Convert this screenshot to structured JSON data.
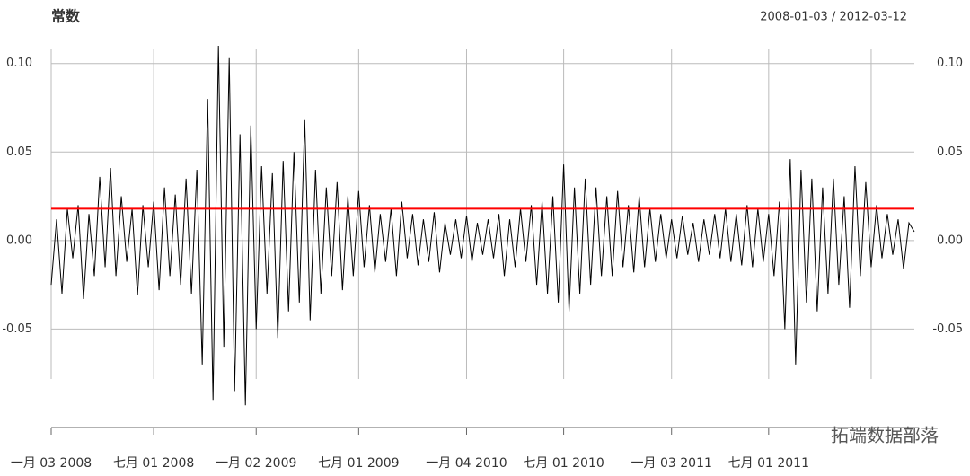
{
  "chart_data": {
    "type": "line",
    "title": "常数",
    "subtitle": "2008-01-03 / 2012-03-12",
    "values": [
      -0.025,
      0.012,
      -0.03,
      0.018,
      -0.01,
      0.02,
      -0.033,
      0.015,
      -0.02,
      0.036,
      -0.015,
      0.041,
      -0.02,
      0.025,
      -0.012,
      0.018,
      -0.031,
      0.02,
      -0.015,
      0.022,
      -0.028,
      0.03,
      -0.02,
      0.026,
      -0.025,
      0.035,
      -0.03,
      0.04,
      -0.07,
      0.08,
      -0.09,
      0.11,
      -0.06,
      0.103,
      -0.085,
      0.06,
      -0.093,
      0.065,
      -0.05,
      0.042,
      -0.03,
      0.038,
      -0.055,
      0.045,
      -0.04,
      0.05,
      -0.035,
      0.068,
      -0.045,
      0.04,
      -0.03,
      0.03,
      -0.02,
      0.033,
      -0.028,
      0.025,
      -0.02,
      0.028,
      -0.015,
      0.02,
      -0.018,
      0.015,
      -0.012,
      0.018,
      -0.02,
      0.022,
      -0.01,
      0.015,
      -0.014,
      0.012,
      -0.012,
      0.016,
      -0.018,
      0.01,
      -0.008,
      0.012,
      -0.01,
      0.014,
      -0.012,
      0.01,
      -0.008,
      0.012,
      -0.01,
      0.015,
      -0.02,
      0.012,
      -0.015,
      0.018,
      -0.012,
      0.02,
      -0.025,
      0.022,
      -0.03,
      0.025,
      -0.035,
      0.043,
      -0.04,
      0.03,
      -0.03,
      0.035,
      -0.025,
      0.03,
      -0.02,
      0.025,
      -0.02,
      0.028,
      -0.015,
      0.02,
      -0.018,
      0.025,
      -0.015,
      0.018,
      -0.012,
      0.015,
      -0.01,
      0.012,
      -0.01,
      0.014,
      -0.008,
      0.01,
      -0.012,
      0.012,
      -0.008,
      0.015,
      -0.01,
      0.018,
      -0.012,
      0.015,
      -0.014,
      0.02,
      -0.015,
      0.018,
      -0.012,
      0.015,
      -0.02,
      0.022,
      -0.05,
      0.046,
      -0.07,
      0.04,
      -0.035,
      0.035,
      -0.04,
      0.03,
      -0.03,
      0.035,
      -0.025,
      0.025,
      -0.038,
      0.042,
      -0.02,
      0.033,
      -0.015,
      0.02,
      -0.01,
      0.015,
      -0.008,
      0.012,
      -0.016,
      0.01,
      0.005
    ],
    "color": "#000000",
    "hline": {
      "value": 0.018,
      "color": "#ff0000"
    },
    "xlim": [
      0,
      160
    ],
    "xticks": [
      {
        "value": 0,
        "label": "一月 03 2008"
      },
      {
        "value": 19,
        "label": "七月 01 2008"
      },
      {
        "value": 38,
        "label": "一月 02 2009"
      },
      {
        "value": 57,
        "label": "七月 01 2009"
      },
      {
        "value": 77,
        "label": "一月 04 2010"
      },
      {
        "value": 95,
        "label": "七月 01 2010"
      },
      {
        "value": 115,
        "label": "一月 03 2011"
      },
      {
        "value": 133,
        "label": "七月 01 2011"
      },
      {
        "value": 152,
        "label": null
      }
    ],
    "ylim": [
      -0.1,
      0.11
    ],
    "yticks": [
      {
        "value": 0.1,
        "label": "0.10"
      },
      0.05,
      {
        "value": 0,
        "label": "0.00"
      },
      -0.05
    ],
    "grid": true,
    "watermark": "拓端数据部落"
  }
}
